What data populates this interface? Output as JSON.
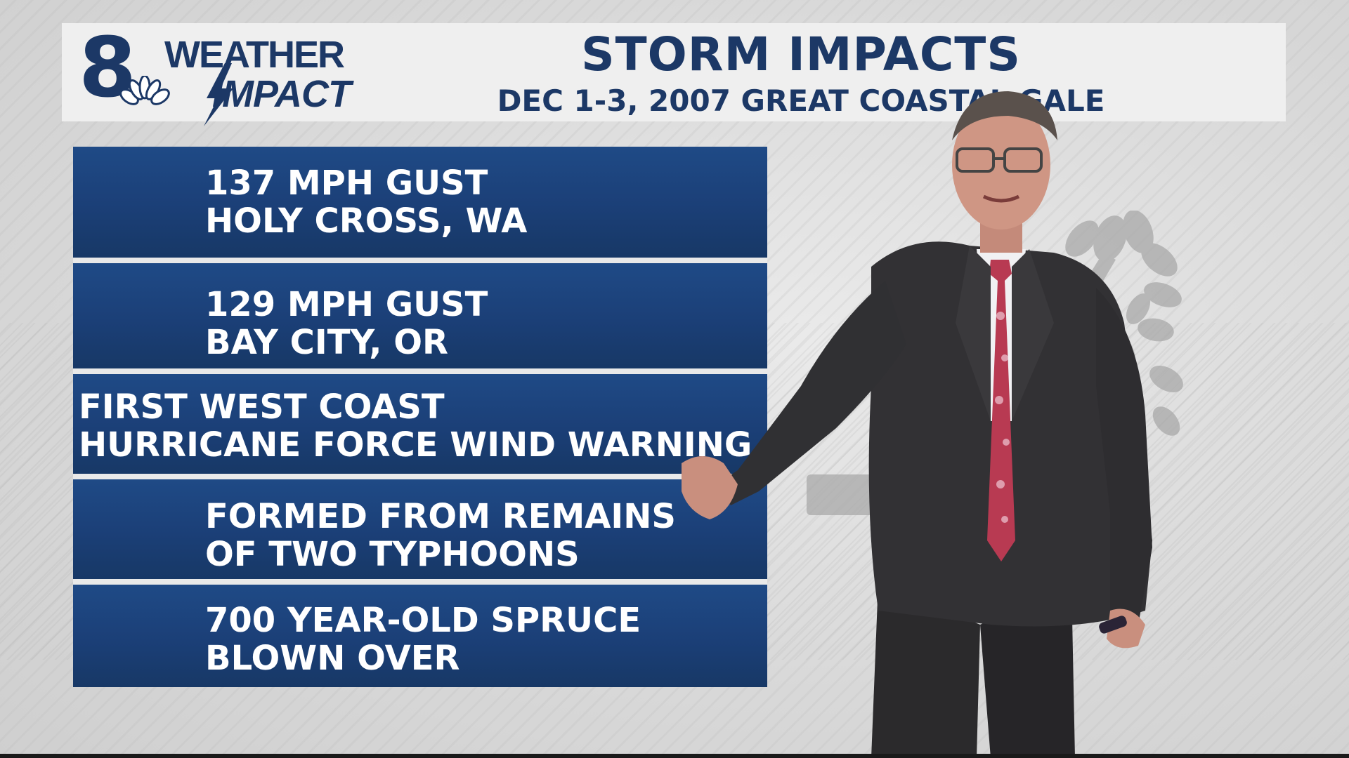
{
  "logo": {
    "channel_number": "8",
    "word_weather": "WEATHER",
    "word_impact": "IMPACT"
  },
  "header": {
    "title": "STORM IMPACTS",
    "subtitle": "DEC 1-3, 2007 GREAT COASTAL GALE"
  },
  "panels": [
    {
      "line1": "137 MPH GUST",
      "line2": "HOLY CROSS, WA"
    },
    {
      "line1": "129 MPH GUST",
      "line2": "BAY CITY, OR"
    },
    {
      "line1": "FIRST WEST COAST",
      "line2": "HURRICANE FORCE WIND WARNING"
    },
    {
      "line1": "FORMED FROM REMAINS",
      "line2": "OF TWO TYPHOONS"
    },
    {
      "line1": "700 YEAR-OLD SPRUCE",
      "line2": "BLOWN OVER"
    }
  ],
  "colors": {
    "brand_navy": "#1c3866",
    "panel_blue": "#1b3f77",
    "header_bg": "#efefef"
  },
  "icons": {
    "logo_mark": "peacock-icon",
    "bolt": "lightning-bolt-icon",
    "background_art": "tree-silhouette-icon"
  }
}
